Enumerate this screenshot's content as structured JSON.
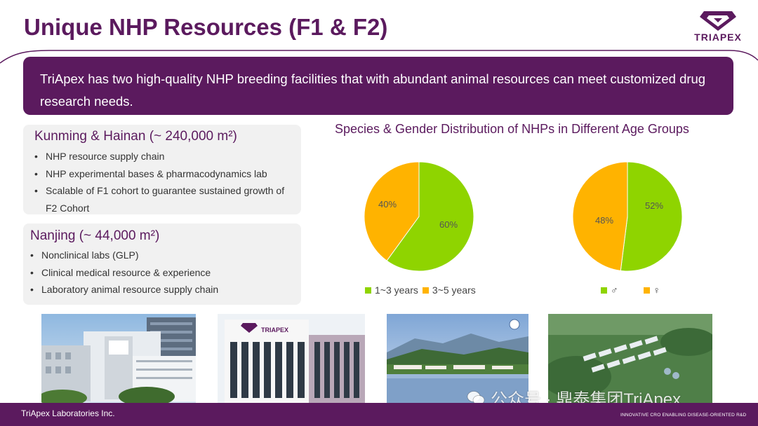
{
  "header": {
    "title": "Unique NHP Resources (F1 & F2)",
    "logo_text": "TRIAPEX"
  },
  "banner": {
    "text": "TriApex has two high-quality NHP breeding facilities that with abundant animal resources can meet customized drug research needs."
  },
  "panels": [
    {
      "title": "Kunming & Hainan (~ 240,000 m²)",
      "items": [
        "NHP resource supply chain",
        "NHP experimental bases & pharmacodynamics lab",
        "Scalable of F1 cohort to guarantee sustained growth of F2 Cohort"
      ]
    },
    {
      "title": "Nanjing (~ 44,000 m²)",
      "items": [
        "Nonclinical labs (GLP)",
        "Clinical medical resource & experience",
        "Laboratory animal resource supply chain"
      ]
    }
  ],
  "charts_title": "Species & Gender Distribution of NHPs in Different Age Groups",
  "colors": {
    "green": "#8fd400",
    "orange": "#ffb300",
    "purple": "#5b1a5e"
  },
  "chart_data": [
    {
      "type": "pie",
      "labels": [
        "1~3 years",
        "3~5 years"
      ],
      "values": [
        60,
        40
      ],
      "data_labels": [
        "60%",
        "40%"
      ],
      "colors": [
        "#8fd400",
        "#ffb300"
      ],
      "legend_position": "bottom"
    },
    {
      "type": "pie",
      "labels": [
        "♂",
        "♀"
      ],
      "values": [
        52,
        48
      ],
      "data_labels": [
        "52%",
        "48%"
      ],
      "colors": [
        "#8fd400",
        "#ffb300"
      ],
      "legend_position": "bottom"
    }
  ],
  "photos": [
    "office-building-photo",
    "triapex-building-photo",
    "mountain-lake-facility-photo",
    "aerial-facility-photo"
  ],
  "photo_text": {
    "building_sign": "TRIAPEX"
  },
  "footer": {
    "company": "TriApex Laboratories Inc.",
    "tagline": "INNOVATIVE CRO ENABLING DISEASE-ORIENTED R&D"
  },
  "watermark": {
    "text": "公众号 · 鼎泰集团TriApex"
  }
}
